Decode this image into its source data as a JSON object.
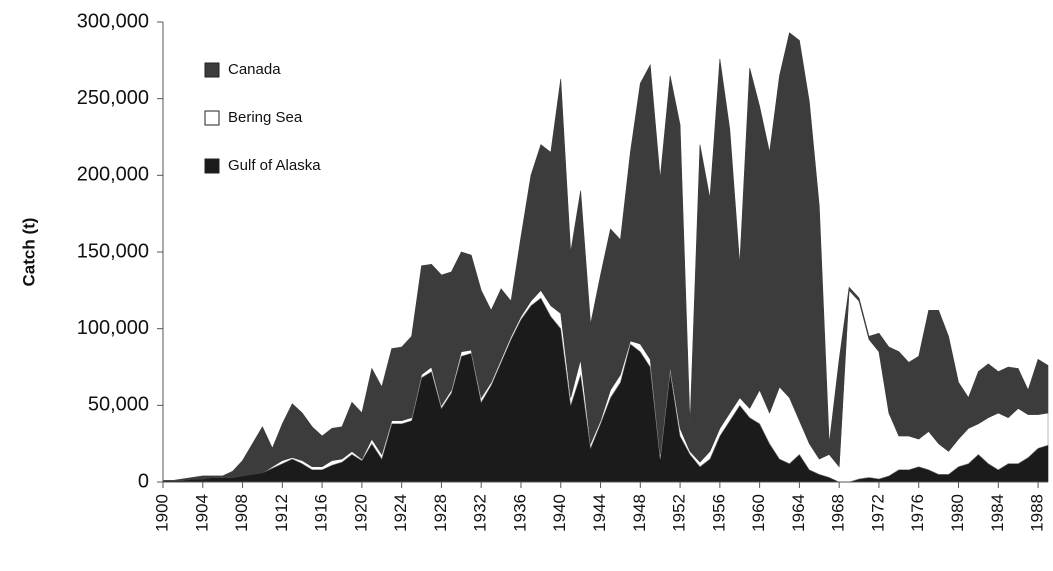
{
  "chart_data": {
    "type": "stacked_area",
    "y_label": "Catch (t)",
    "x": [
      1900,
      1901,
      1902,
      1903,
      1904,
      1905,
      1906,
      1907,
      1908,
      1909,
      1910,
      1911,
      1912,
      1913,
      1914,
      1915,
      1916,
      1917,
      1918,
      1919,
      1920,
      1921,
      1922,
      1923,
      1924,
      1925,
      1926,
      1927,
      1928,
      1929,
      1930,
      1931,
      1932,
      1933,
      1934,
      1935,
      1936,
      1937,
      1938,
      1939,
      1940,
      1941,
      1942,
      1943,
      1944,
      1945,
      1946,
      1947,
      1948,
      1949,
      1950,
      1951,
      1952,
      1953,
      1954,
      1955,
      1956,
      1957,
      1958,
      1959,
      1960,
      1961,
      1962,
      1963,
      1964,
      1965,
      1966,
      1967,
      1968,
      1969,
      1970,
      1971,
      1972,
      1973,
      1974,
      1975,
      1976,
      1977,
      1978,
      1979,
      1980,
      1981,
      1982,
      1983,
      1984,
      1985,
      1986,
      1987,
      1988,
      1989
    ],
    "series": [
      {
        "name": "Gulf of Alaska",
        "color": "#1b1b1b",
        "values": [
          1000,
          1000,
          1000,
          2000,
          2000,
          3000,
          3000,
          3000,
          4000,
          5000,
          6000,
          9000,
          12000,
          15000,
          12000,
          8000,
          8000,
          11000,
          13000,
          18000,
          14000,
          25000,
          15000,
          38000,
          38000,
          40000,
          68000,
          72000,
          48000,
          58000,
          82000,
          84000,
          52000,
          63000,
          78000,
          93000,
          106000,
          115000,
          120000,
          108000,
          100000,
          50000,
          70000,
          22000,
          38000,
          55000,
          65000,
          90000,
          85000,
          75000,
          15000,
          72000,
          30000,
          18000,
          10000,
          15000,
          30000,
          40000,
          50000,
          42000,
          38000,
          25000,
          15000,
          12000,
          18000,
          8000,
          5000,
          3000,
          0,
          0,
          2000,
          3000,
          2000,
          4000,
          8000,
          8000,
          10000,
          8000,
          5000,
          5000,
          10000,
          12000,
          18000,
          12000,
          8000,
          12000,
          12000,
          16000,
          22000,
          24000
        ]
      },
      {
        "name": "Bering Sea",
        "color": "#ffffff",
        "values": [
          0,
          0,
          0,
          0,
          0,
          0,
          0,
          0,
          0,
          0,
          0,
          1000,
          2000,
          1000,
          2000,
          2000,
          2000,
          3000,
          2000,
          2000,
          1000,
          3000,
          3000,
          2000,
          2000,
          2000,
          2000,
          3000,
          2000,
          2000,
          3000,
          2000,
          3000,
          2000,
          2000,
          2000,
          2000,
          3000,
          5000,
          7000,
          10000,
          5000,
          10000,
          3000,
          2000,
          5000,
          5000,
          2000,
          5000,
          5000,
          3000,
          3000,
          5000,
          2000,
          3000,
          5000,
          5000,
          5000,
          5000,
          6000,
          22000,
          20000,
          47000,
          43000,
          22000,
          17000,
          10000,
          15000,
          10000,
          125000,
          116000,
          90000,
          83000,
          41000,
          22000,
          22000,
          18000,
          25000,
          20000,
          15000,
          18000,
          23000,
          20000,
          30000,
          37000,
          30000,
          36000,
          28000,
          22000,
          21000
        ]
      },
      {
        "name": "Canada",
        "color": "#3c3c3c",
        "values": [
          0,
          0,
          1000,
          1000,
          2000,
          1000,
          1000,
          4000,
          10000,
          20000,
          30000,
          12000,
          24000,
          35000,
          31000,
          26000,
          20000,
          21000,
          21000,
          32000,
          30000,
          46000,
          44000,
          47000,
          48000,
          53000,
          71000,
          67000,
          85000,
          77000,
          65000,
          62000,
          70000,
          47000,
          46000,
          23000,
          52000,
          82000,
          95000,
          100000,
          153000,
          95000,
          110000,
          78000,
          95000,
          105000,
          88000,
          123000,
          170000,
          192000,
          180000,
          190000,
          198000,
          18000,
          207000,
          165000,
          241000,
          185000,
          87000,
          222000,
          185000,
          170000,
          203000,
          238000,
          248000,
          223000,
          165000,
          7000,
          70000,
          2000,
          2000,
          2000,
          12000,
          43000,
          55000,
          48000,
          54000,
          79000,
          87000,
          75000,
          37000,
          20000,
          34000,
          35000,
          27000,
          33000,
          26000,
          16000,
          36000,
          31000
        ]
      }
    ],
    "legend_order": [
      "Canada",
      "Bering Sea",
      "Gulf of Alaska"
    ],
    "legend": "upper left",
    "xlim": [
      1900,
      1989
    ],
    "xticks": [
      1900,
      1904,
      1908,
      1912,
      1916,
      1920,
      1924,
      1928,
      1932,
      1936,
      1940,
      1944,
      1948,
      1952,
      1956,
      1960,
      1964,
      1968,
      1972,
      1976,
      1980,
      1984,
      1988
    ],
    "ylim": [
      0,
      300000
    ],
    "yticks": [
      0,
      {
        "value": 50000,
        "label": "50,000"
      },
      {
        "value": 100000,
        "label": "100,000"
      },
      {
        "value": 150000,
        "label": "150,000"
      },
      {
        "value": 200000,
        "label": "200,000"
      },
      {
        "value": 250000,
        "label": "250,000"
      },
      {
        "value": 300000,
        "label": "300,000"
      }
    ],
    "grid": false
  }
}
